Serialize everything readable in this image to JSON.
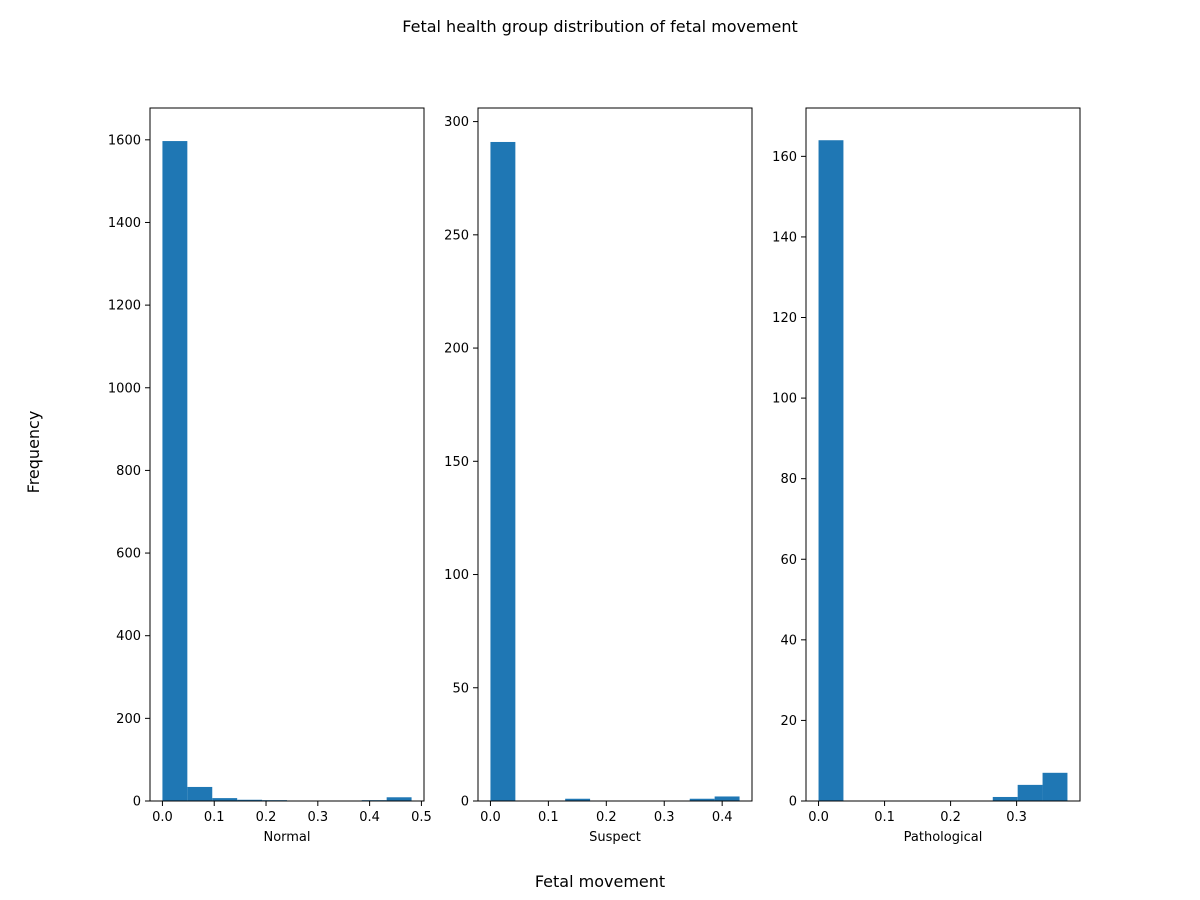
{
  "figure": {
    "title": "Fetal health group distribution of fetal movement",
    "xlabel": "Fetal movement",
    "ylabel": "Frequency"
  },
  "colors": {
    "bar": "#1f77b4",
    "axes": "#000000",
    "background": "#ffffff"
  },
  "chart_data": [
    {
      "type": "bar",
      "xlabel": "Normal",
      "ylabel": "",
      "xlim": [
        -0.024,
        0.505
      ],
      "ylim": [
        0,
        1677
      ],
      "xticks": [
        0.0,
        0.1,
        0.2,
        0.3,
        0.4,
        0.5
      ],
      "xtick_labels": [
        "0.0",
        "0.1",
        "0.2",
        "0.3",
        "0.4",
        "0.5"
      ],
      "yticks": [
        0,
        200,
        400,
        600,
        800,
        1000,
        1200,
        1400,
        1600
      ],
      "ytick_labels": [
        "0",
        "200",
        "400",
        "600",
        "800",
        "1000",
        "1200",
        "1400",
        "1600"
      ],
      "bin_edges": [
        0.0,
        0.0481,
        0.0962,
        0.1443,
        0.1924,
        0.2405,
        0.2886,
        0.3367,
        0.3848,
        0.4329,
        0.481
      ],
      "values": [
        1597,
        34,
        7,
        3,
        2,
        0,
        0,
        0,
        2,
        9
      ]
    },
    {
      "type": "bar",
      "xlabel": "Suspect",
      "ylabel": "",
      "xlim": [
        -0.0215,
        0.4515
      ],
      "ylim": [
        0,
        306
      ],
      "xticks": [
        0.0,
        0.1,
        0.2,
        0.3,
        0.4
      ],
      "xtick_labels": [
        "0.0",
        "0.1",
        "0.2",
        "0.3",
        "0.4"
      ],
      "yticks": [
        0,
        50,
        100,
        150,
        200,
        250,
        300
      ],
      "ytick_labels": [
        "0",
        "50",
        "100",
        "150",
        "200",
        "250",
        "300"
      ],
      "bin_edges": [
        0.0,
        0.043,
        0.086,
        0.129,
        0.172,
        0.215,
        0.258,
        0.301,
        0.344,
        0.387,
        0.43
      ],
      "values": [
        291,
        0,
        0,
        1,
        0,
        0,
        0,
        0,
        1,
        2
      ]
    },
    {
      "type": "bar",
      "xlabel": "Pathological",
      "ylabel": "",
      "xlim": [
        -0.019,
        0.396
      ],
      "ylim": [
        0,
        172
      ],
      "xticks": [
        0.0,
        0.1,
        0.2,
        0.3
      ],
      "xtick_labels": [
        "0.0",
        "0.1",
        "0.2",
        "0.3"
      ],
      "yticks": [
        0,
        20,
        40,
        60,
        80,
        100,
        120,
        140,
        160
      ],
      "ytick_labels": [
        "0",
        "20",
        "40",
        "60",
        "80",
        "100",
        "120",
        "140",
        "160"
      ],
      "bin_edges": [
        0.0,
        0.0377,
        0.0754,
        0.1131,
        0.1508,
        0.1885,
        0.2262,
        0.2639,
        0.3016,
        0.3393,
        0.377
      ],
      "values": [
        164,
        0,
        0,
        0,
        0,
        0,
        0,
        1,
        4,
        7
      ]
    }
  ]
}
